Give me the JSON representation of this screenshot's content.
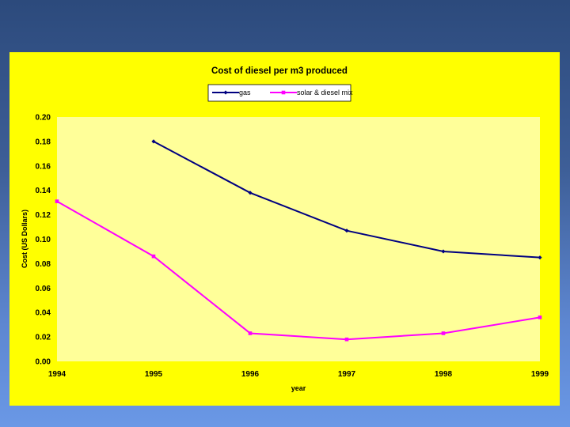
{
  "chart_data": {
    "type": "line",
    "title": "Cost of diesel per m3 produced",
    "xlabel": "year",
    "ylabel": "Cost (US Dollars)",
    "categories": [
      "1994",
      "1995",
      "1996",
      "1997",
      "1998",
      "1999"
    ],
    "yticks": [
      "0.00",
      "0.02",
      "0.04",
      "0.06",
      "0.08",
      "0.10",
      "0.12",
      "0.14",
      "0.16",
      "0.18",
      "0.20"
    ],
    "ylim": [
      0,
      0.2
    ],
    "grid": false,
    "legend_position": "top",
    "series": [
      {
        "name": "gas",
        "color": "#000080",
        "marker": "diamond",
        "values": [
          null,
          0.18,
          0.138,
          0.107,
          0.09,
          0.085
        ]
      },
      {
        "name": "solar & diesel mix",
        "color": "#ff00ff",
        "marker": "square",
        "values": [
          0.131,
          0.086,
          0.023,
          0.018,
          0.023,
          0.036
        ]
      }
    ]
  },
  "colors": {
    "frame_background": "#ffff00",
    "plot_background": "#ffff99"
  }
}
